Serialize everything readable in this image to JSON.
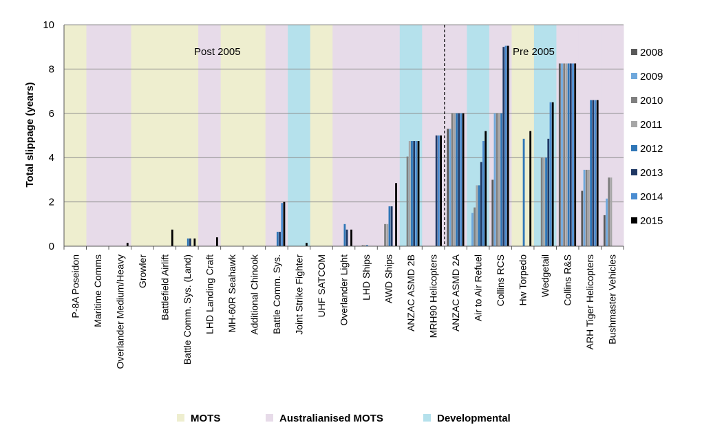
{
  "chart_data": {
    "type": "bar",
    "ylabel": "Total slippage (years)",
    "xlabel": "",
    "ylim": [
      0,
      10
    ],
    "yticks": [
      0,
      2,
      4,
      6,
      8,
      10
    ],
    "grid": true,
    "legend_position": "right",
    "categories": [
      "P-8A Poseidon",
      "Maritime Comms",
      "Overlander Medium/Heavy",
      "Growler",
      "Battlefield Airlift",
      "Battle Comm. Sys. (Land)",
      "LHD Landing Craft",
      "MH-60R Seahawk",
      "Additional Chinook",
      "Battle Comm. Sys.",
      "Joint Strike Fighter",
      "UHF SATCOM",
      "Overlander Light",
      "LHD Ships",
      "AWD Ships",
      "ANZAC ASMD 2B",
      "MRH90 Helicopters",
      "ANZAC ASMD 2A",
      "Air to Air Refuel",
      "Collins RCS",
      "Hw Torpedo",
      "Wedgetail",
      "Collins R&S",
      "ARH Tiger Helicopters",
      "Bushmaster Vehicles"
    ],
    "category_types": [
      "MOTS",
      "Australianised MOTS",
      "Australianised MOTS",
      "MOTS",
      "MOTS",
      "MOTS",
      "Australianised MOTS",
      "MOTS",
      "MOTS",
      "Australianised MOTS",
      "Developmental",
      "MOTS",
      "Australianised MOTS",
      "Australianised MOTS",
      "Australianised MOTS",
      "Developmental",
      "Australianised MOTS",
      "Australianised MOTS",
      "Developmental",
      "Australianised MOTS",
      "MOTS",
      "Developmental",
      "Australianised MOTS",
      "Australianised MOTS",
      "Australianised MOTS"
    ],
    "series": [
      {
        "name": "2008",
        "color": "#595959",
        "values": [
          null,
          null,
          null,
          null,
          null,
          null,
          null,
          null,
          null,
          null,
          null,
          null,
          null,
          null,
          null,
          null,
          null,
          5.3,
          null,
          3.0,
          null,
          null,
          8.25,
          2.5,
          1.4
        ]
      },
      {
        "name": "2009",
        "color": "#6fa8dc",
        "values": [
          null,
          null,
          null,
          null,
          null,
          null,
          null,
          null,
          null,
          null,
          null,
          null,
          null,
          null,
          null,
          null,
          null,
          5.3,
          1.5,
          6.0,
          null,
          null,
          8.25,
          3.45,
          2.15
        ]
      },
      {
        "name": "2010",
        "color": "#7f7f7f",
        "values": [
          null,
          null,
          null,
          null,
          null,
          null,
          null,
          null,
          null,
          null,
          null,
          null,
          null,
          0.05,
          1.0,
          4.05,
          null,
          6.0,
          1.75,
          6.0,
          null,
          4.0,
          8.25,
          3.45,
          3.1
        ]
      },
      {
        "name": "2011",
        "color": "#a6a6a6",
        "values": [
          null,
          null,
          null,
          null,
          null,
          null,
          null,
          null,
          null,
          null,
          null,
          null,
          null,
          0.05,
          1.0,
          4.75,
          null,
          6.0,
          2.75,
          6.0,
          null,
          4.0,
          8.25,
          3.45,
          3.1
        ]
      },
      {
        "name": "2012",
        "color": "#2e75b6",
        "values": [
          null,
          null,
          null,
          null,
          null,
          0.35,
          null,
          null,
          null,
          0.65,
          null,
          null,
          1.0,
          0.05,
          1.8,
          4.75,
          null,
          6.0,
          2.75,
          6.0,
          4.85,
          4.0,
          8.25,
          6.6,
          null
        ]
      },
      {
        "name": "2013",
        "color": "#1f3864",
        "values": [
          null,
          null,
          null,
          null,
          null,
          0.35,
          null,
          null,
          null,
          0.65,
          null,
          null,
          0.75,
          null,
          1.8,
          4.75,
          5.0,
          6.0,
          3.8,
          9.0,
          null,
          4.85,
          8.25,
          6.6,
          null
        ]
      },
      {
        "name": "2014",
        "color": "#4a8cd1",
        "values": [
          null,
          null,
          null,
          null,
          null,
          null,
          null,
          null,
          null,
          1.95,
          null,
          null,
          null,
          null,
          null,
          4.75,
          5.0,
          6.0,
          4.75,
          9.05,
          null,
          6.5,
          8.25,
          6.6,
          null
        ]
      },
      {
        "name": "2015",
        "color": "#000000",
        "values": [
          null,
          null,
          0.15,
          null,
          0.75,
          0.35,
          0.4,
          null,
          null,
          2.0,
          0.15,
          null,
          0.75,
          null,
          2.85,
          4.75,
          5.0,
          6.0,
          5.2,
          9.05,
          5.2,
          6.5,
          8.25,
          6.6,
          null
        ]
      }
    ],
    "annotations": {
      "post": "Post 2005",
      "pre": "Pre 2005"
    },
    "divider_after_category": "MRH90 Helicopters",
    "band_legend": [
      {
        "label": "MOTS",
        "color": "#eeeecf"
      },
      {
        "label": "Australianised MOTS",
        "color": "#e7dbe9"
      },
      {
        "label": "Developmental",
        "color": "#b5e1ec"
      }
    ]
  }
}
